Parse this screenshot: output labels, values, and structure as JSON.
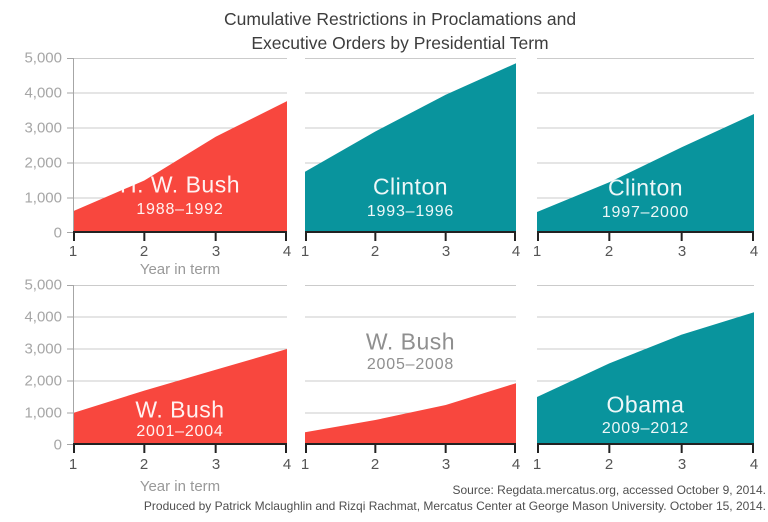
{
  "title": {
    "line1": "Cumulative Restrictions in Proclamations and",
    "line2": "Executive Orders by Presidential Term"
  },
  "axis": {
    "x_ticks": [
      "1",
      "2",
      "3",
      "4"
    ],
    "x_title": "Year in term",
    "y_ticks": [
      "0",
      "1,000",
      "2,000",
      "3,000",
      "4,000",
      "5,000"
    ]
  },
  "footer": {
    "line1": "Source: Regdata.mercatus.org, accessed October 9, 2014.",
    "line2": "Produced by Patrick Mclaughlin and Rizqi Rachmat, Mercatus Center at George Mason University. October 15, 2014."
  },
  "colors": {
    "red": "#f8473e",
    "teal": "#09949d",
    "grid": "#cbcbcb",
    "axis_dark": "#222222",
    "axis_gray": "#a6a6a6",
    "title_text": "#3d3d3d",
    "footer_text": "#4f4f4f",
    "gray_label": "#8f8f8f"
  },
  "chart_data": {
    "type": "area",
    "layout": "2x3 small multiples",
    "x": [
      1,
      2,
      3,
      4
    ],
    "xlabel": "Year in term",
    "ylabel": "",
    "ylim": [
      0,
      5000
    ],
    "grid": true,
    "legend": "none",
    "title": "Cumulative Restrictions in Proclamations and Executive Orders by Presidential Term",
    "panels": [
      {
        "name": "H. W. Bush",
        "years": "1988–1992",
        "color": "red",
        "label_style": "on-area",
        "values": [
          620,
          1500,
          2750,
          3770
        ]
      },
      {
        "name": "Clinton",
        "years": "1993–1996",
        "color": "teal",
        "label_style": "on-area",
        "values": [
          1750,
          2900,
          3950,
          4850
        ]
      },
      {
        "name": "Clinton",
        "years": "1997–2000",
        "color": "teal",
        "label_style": "on-area",
        "values": [
          600,
          1450,
          2450,
          3400
        ]
      },
      {
        "name": "W. Bush",
        "years": "2001–2004",
        "color": "red",
        "label_style": "on-area",
        "values": [
          1000,
          1700,
          2350,
          3000
        ]
      },
      {
        "name": "W. Bush",
        "years": "2005–2008",
        "color": "red",
        "label_style": "above-area",
        "values": [
          400,
          780,
          1250,
          1930
        ]
      },
      {
        "name": "Obama",
        "years": "2009–2012",
        "color": "teal",
        "label_style": "on-area",
        "values": [
          1500,
          2550,
          3450,
          4150
        ]
      }
    ]
  }
}
